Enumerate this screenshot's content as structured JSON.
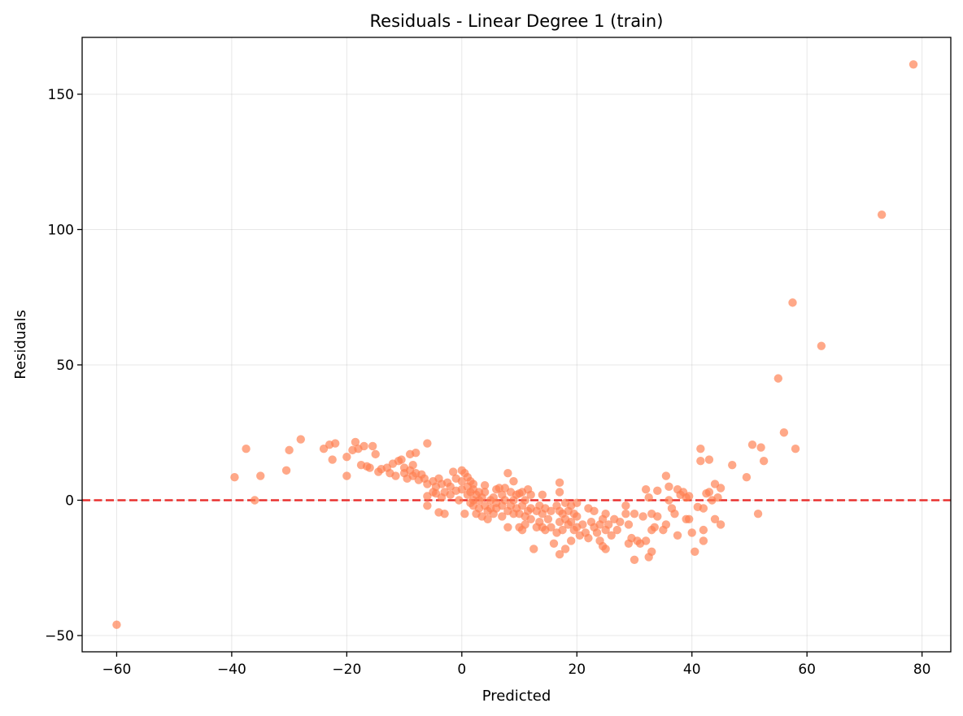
{
  "chart_data": {
    "type": "scatter",
    "title": "Residuals - Linear Degree 1 (train)",
    "xlabel": "Predicted",
    "ylabel": "Residuals",
    "xlim": [
      -66,
      85
    ],
    "ylim": [
      -56,
      171
    ],
    "xticks": [
      -60,
      -40,
      -20,
      0,
      20,
      40,
      60,
      80
    ],
    "yticks": [
      -50,
      0,
      50,
      100,
      150
    ],
    "xtick_labels": [
      "−60",
      "−40",
      "−20",
      "0",
      "20",
      "40",
      "60",
      "80"
    ],
    "ytick_labels": [
      "−50",
      "0",
      "50",
      "100",
      "150"
    ],
    "grid": true,
    "point_color": "#ff7f50",
    "reference_line": {
      "y": 0,
      "color": "#e8302e",
      "style": "dashed"
    },
    "points": [
      [
        -60,
        -46
      ],
      [
        -39.5,
        8.5
      ],
      [
        -37.5,
        19
      ],
      [
        -36,
        0
      ],
      [
        -35,
        9
      ],
      [
        -30.5,
        11
      ],
      [
        -30,
        18.5
      ],
      [
        -28,
        22.5
      ],
      [
        -24,
        19
      ],
      [
        -23,
        20.5
      ],
      [
        -22.5,
        15
      ],
      [
        -22,
        21
      ],
      [
        -20,
        16
      ],
      [
        -20,
        9
      ],
      [
        -19,
        18.5
      ],
      [
        -18.5,
        21.5
      ],
      [
        -18,
        19
      ],
      [
        -17.5,
        13
      ],
      [
        -17,
        20
      ],
      [
        -16.5,
        12.5
      ],
      [
        -16,
        12
      ],
      [
        -15.5,
        20
      ],
      [
        -15,
        17
      ],
      [
        -14.5,
        10.5
      ],
      [
        -14,
        11.5
      ],
      [
        -13,
        12
      ],
      [
        -12.5,
        10
      ],
      [
        -12,
        13.5
      ],
      [
        -11.5,
        9
      ],
      [
        -11,
        14.5
      ],
      [
        -10.5,
        15
      ],
      [
        -10,
        12
      ],
      [
        -10,
        10
      ],
      [
        -9.5,
        8
      ],
      [
        -9,
        17
      ],
      [
        -9,
        11
      ],
      [
        -8.5,
        13
      ],
      [
        -8.5,
        9
      ],
      [
        -8,
        17.5
      ],
      [
        -8,
        10
      ],
      [
        -7.5,
        7.5
      ],
      [
        -7,
        9.5
      ],
      [
        -6.5,
        8
      ],
      [
        -6,
        21
      ],
      [
        -6,
        6
      ],
      [
        -6,
        1.5
      ],
      [
        -6,
        -2
      ],
      [
        -5,
        7
      ],
      [
        -5,
        3
      ],
      [
        -4.5,
        5
      ],
      [
        -4.5,
        2.5
      ],
      [
        -4,
        8
      ],
      [
        -4,
        -4.5
      ],
      [
        -3.5,
        6
      ],
      [
        -3.5,
        1
      ],
      [
        -3,
        3
      ],
      [
        -3,
        -5
      ],
      [
        -2.5,
        6.5
      ],
      [
        -2,
        5
      ],
      [
        -2,
        2
      ],
      [
        -1.5,
        10.5
      ],
      [
        -1,
        8
      ],
      [
        -1,
        3.5
      ],
      [
        -0.5,
        0
      ],
      [
        0,
        11
      ],
      [
        0,
        7
      ],
      [
        0,
        4
      ],
      [
        0.5,
        10
      ],
      [
        0.5,
        -5
      ],
      [
        1,
        8.5
      ],
      [
        1,
        5
      ],
      [
        1,
        2
      ],
      [
        1.5,
        7
      ],
      [
        1.5,
        3
      ],
      [
        1.5,
        -1
      ],
      [
        2,
        6
      ],
      [
        2,
        4
      ],
      [
        2,
        0
      ],
      [
        2,
        -2
      ],
      [
        2.5,
        2
      ],
      [
        2.5,
        -5
      ],
      [
        3,
        3
      ],
      [
        3,
        0
      ],
      [
        3,
        -3
      ],
      [
        3.5,
        1
      ],
      [
        3.5,
        -6
      ],
      [
        4,
        5.5
      ],
      [
        4,
        3
      ],
      [
        4,
        -2
      ],
      [
        4.5,
        -4
      ],
      [
        4.5,
        -7
      ],
      [
        5,
        0
      ],
      [
        5,
        -3
      ],
      [
        5.5,
        -5
      ],
      [
        5.5,
        1
      ],
      [
        6,
        4
      ],
      [
        6,
        -1
      ],
      [
        6,
        -3
      ],
      [
        6.5,
        4.5
      ],
      [
        7,
        2
      ],
      [
        7,
        -2
      ],
      [
        7,
        -6
      ],
      [
        7.5,
        4.5
      ],
      [
        7.5,
        0
      ],
      [
        8,
        10
      ],
      [
        8,
        -4
      ],
      [
        8,
        -10
      ],
      [
        8.5,
        3
      ],
      [
        8.5,
        -2
      ],
      [
        9,
        7
      ],
      [
        9,
        0
      ],
      [
        9,
        -5
      ],
      [
        9.5,
        2
      ],
      [
        9.5,
        -3
      ],
      [
        10,
        2.5
      ],
      [
        10,
        -5
      ],
      [
        10,
        -10
      ],
      [
        10.5,
        3
      ],
      [
        10.5,
        -2
      ],
      [
        10.5,
        -11
      ],
      [
        11,
        0
      ],
      [
        11,
        -6
      ],
      [
        11,
        -9
      ],
      [
        11.5,
        4
      ],
      [
        11.5,
        -4
      ],
      [
        12,
        2
      ],
      [
        12,
        -3
      ],
      [
        12,
        -7
      ],
      [
        12.5,
        -18
      ],
      [
        13,
        -4
      ],
      [
        13,
        -10
      ],
      [
        13.5,
        -2
      ],
      [
        13.5,
        -8
      ],
      [
        14,
        2
      ],
      [
        14,
        -5
      ],
      [
        14,
        -10
      ],
      [
        14.5,
        -3
      ],
      [
        14.5,
        -11
      ],
      [
        15,
        -7
      ],
      [
        15.5,
        -4
      ],
      [
        15.5,
        -10
      ],
      [
        16,
        -16
      ],
      [
        16.5,
        -2
      ],
      [
        16.5,
        -12
      ],
      [
        17,
        6.5
      ],
      [
        17,
        3
      ],
      [
        17,
        -4
      ],
      [
        17,
        -8
      ],
      [
        17,
        -20
      ],
      [
        17.5,
        -5
      ],
      [
        17.5,
        -11
      ],
      [
        18,
        -1
      ],
      [
        18,
        -7
      ],
      [
        18,
        -18
      ],
      [
        18.5,
        -4
      ],
      [
        18.5,
        -9
      ],
      [
        19,
        -2
      ],
      [
        19,
        -8
      ],
      [
        19,
        -15
      ],
      [
        19.5,
        -5
      ],
      [
        19.5,
        -11
      ],
      [
        20,
        -1
      ],
      [
        20,
        -6
      ],
      [
        20,
        -10
      ],
      [
        20.5,
        -13
      ],
      [
        21,
        -9
      ],
      [
        21.5,
        -12
      ],
      [
        22,
        -3
      ],
      [
        22,
        -14
      ],
      [
        22.5,
        -8
      ],
      [
        23,
        -4
      ],
      [
        23,
        -10
      ],
      [
        23.5,
        -12
      ],
      [
        24,
        -9
      ],
      [
        24,
        -15
      ],
      [
        24.5,
        -7
      ],
      [
        24.5,
        -17
      ],
      [
        25,
        -5
      ],
      [
        25,
        -11
      ],
      [
        25,
        -18
      ],
      [
        25.5,
        -9
      ],
      [
        26,
        -13
      ],
      [
        26.5,
        -7
      ],
      [
        27,
        -11
      ],
      [
        27.5,
        -8
      ],
      [
        28.5,
        -2
      ],
      [
        28.5,
        -5
      ],
      [
        29,
        -9
      ],
      [
        29,
        -16
      ],
      [
        29.5,
        -14
      ],
      [
        30,
        -5
      ],
      [
        30,
        -22
      ],
      [
        30.5,
        -15
      ],
      [
        31,
        -16
      ],
      [
        31.5,
        -6
      ],
      [
        32,
        -15
      ],
      [
        32,
        4
      ],
      [
        32.5,
        1
      ],
      [
        32.5,
        -21
      ],
      [
        33,
        -5
      ],
      [
        33,
        -11
      ],
      [
        33,
        -19
      ],
      [
        33.5,
        -10
      ],
      [
        34,
        3.5
      ],
      [
        34,
        -6
      ],
      [
        35,
        -11
      ],
      [
        35.5,
        9
      ],
      [
        35.5,
        -9
      ],
      [
        36,
        5
      ],
      [
        36,
        0
      ],
      [
        36.5,
        -3
      ],
      [
        37,
        -5
      ],
      [
        37.5,
        4
      ],
      [
        37.5,
        -13
      ],
      [
        38,
        2
      ],
      [
        38.5,
        3
      ],
      [
        39,
        1
      ],
      [
        39,
        -7
      ],
      [
        39.5,
        1.5
      ],
      [
        39.5,
        -7
      ],
      [
        40,
        -12
      ],
      [
        40.5,
        -19
      ],
      [
        41,
        -2.5
      ],
      [
        41.5,
        19
      ],
      [
        41.5,
        14.5
      ],
      [
        42,
        -11
      ],
      [
        42,
        -15
      ],
      [
        42,
        -3
      ],
      [
        42.5,
        2.5
      ],
      [
        43,
        15
      ],
      [
        43,
        3
      ],
      [
        43.5,
        0
      ],
      [
        44,
        6
      ],
      [
        44,
        -7
      ],
      [
        44.5,
        1
      ],
      [
        45,
        4.5
      ],
      [
        45,
        -9
      ],
      [
        47,
        13
      ],
      [
        49.5,
        8.5
      ],
      [
        50.5,
        20.5
      ],
      [
        51.5,
        -5
      ],
      [
        52,
        19.5
      ],
      [
        52.5,
        14.5
      ],
      [
        55,
        45
      ],
      [
        56,
        25
      ],
      [
        57.5,
        73
      ],
      [
        58,
        19
      ],
      [
        62.5,
        57
      ],
      [
        73,
        105.5
      ],
      [
        78.5,
        161
      ]
    ]
  }
}
